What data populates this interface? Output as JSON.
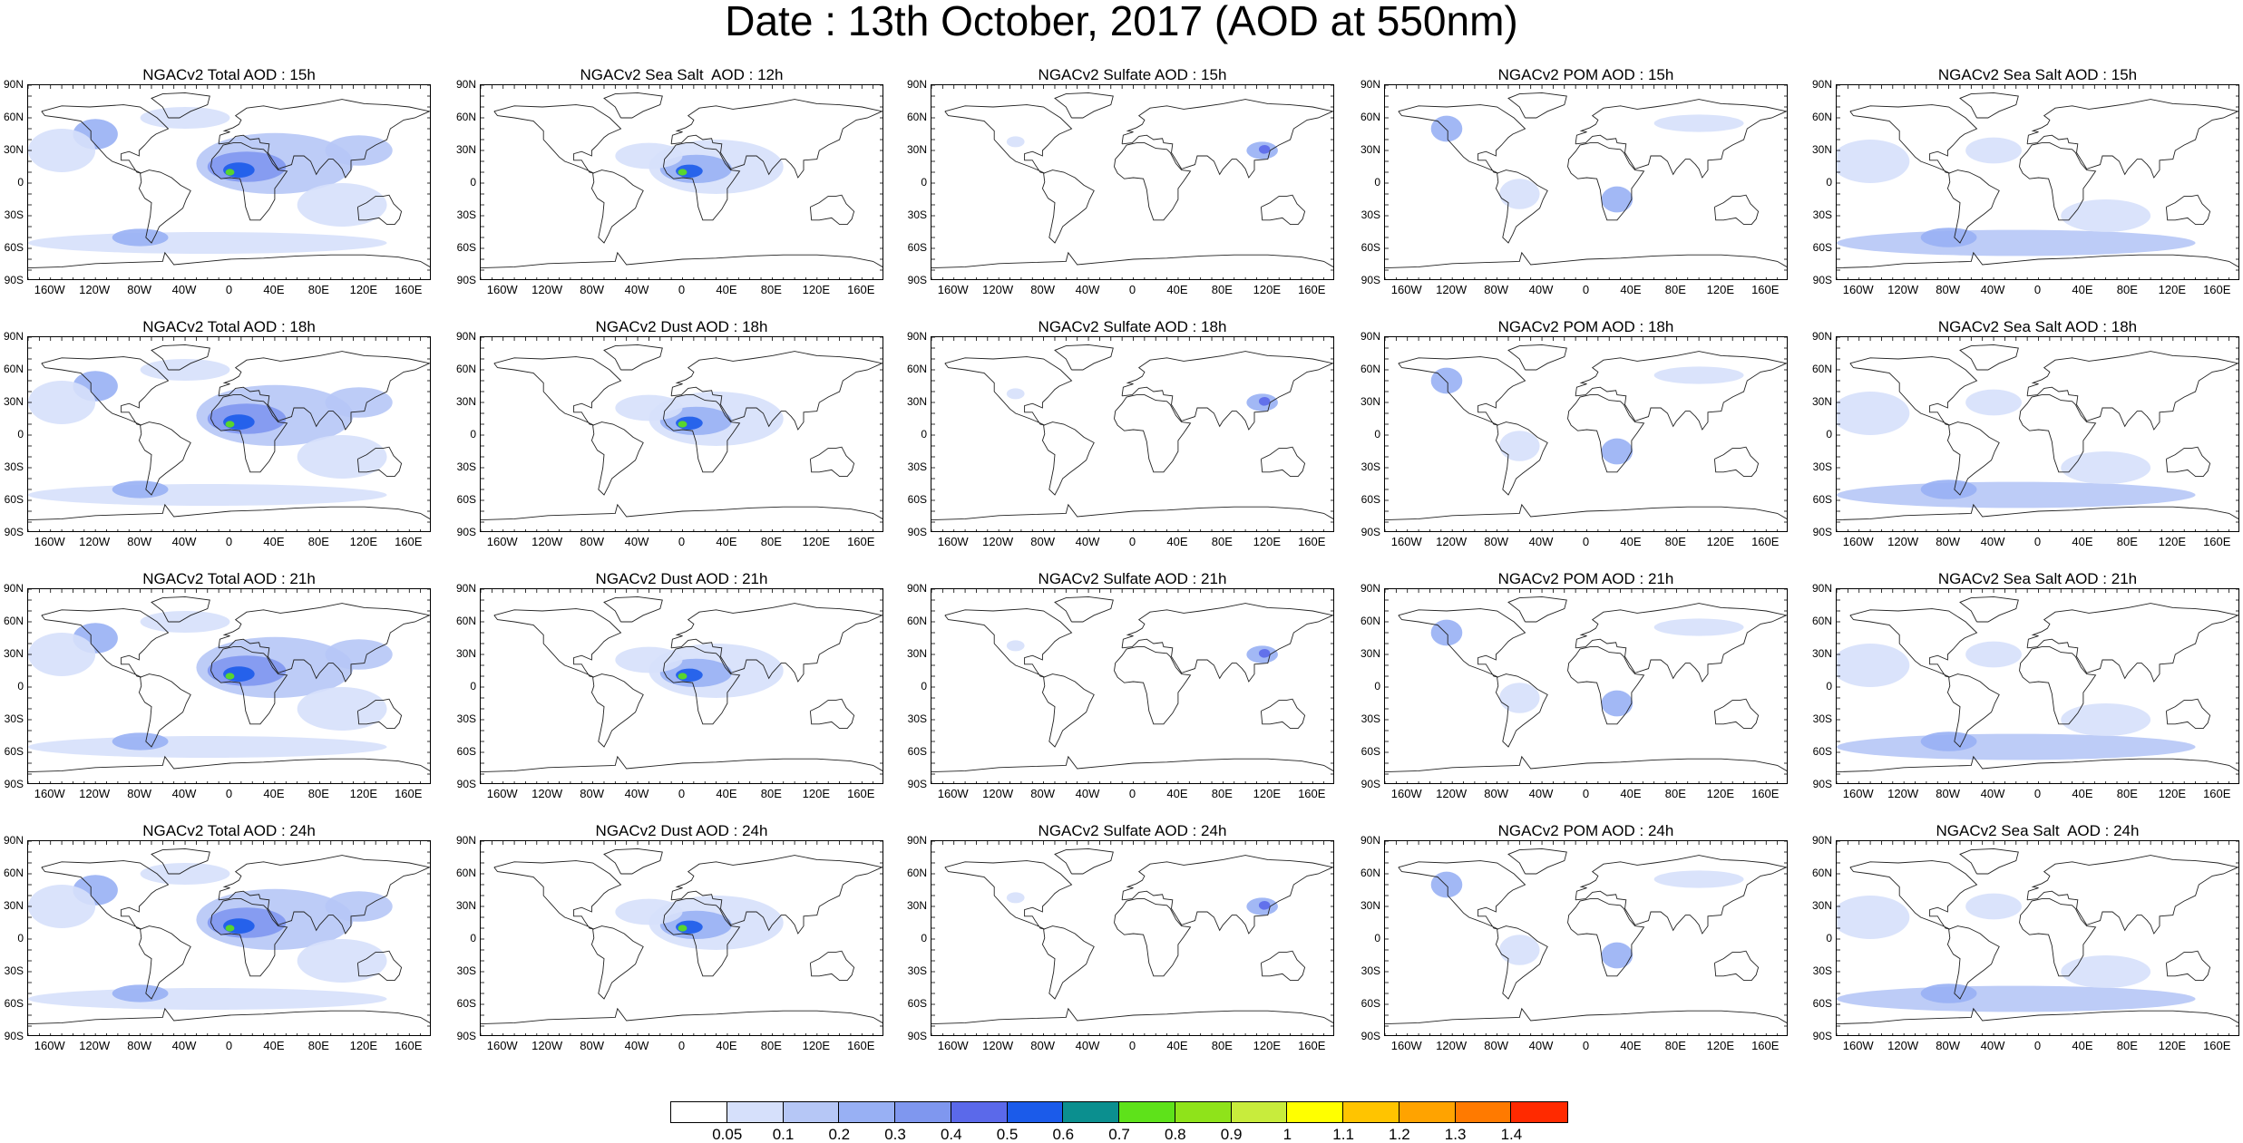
{
  "title": "Date : 13th October, 2017 (AOD at 550nm)",
  "lat_ticks": [
    "90N",
    "60N",
    "30N",
    "0",
    "30S",
    "60S",
    "90S"
  ],
  "lon_ticks": [
    "160W",
    "120W",
    "80W",
    "40W",
    "0",
    "40E",
    "80E",
    "120E",
    "160E"
  ],
  "panels": [
    [
      "NGACv2 Total AOD : 15h",
      "NGACv2 Sea Salt  AOD : 12h",
      "NGACv2 Sulfate AOD : 15h",
      "NGACv2 POM AOD : 15h",
      "NGACv2 Sea Salt AOD : 15h"
    ],
    [
      "NGACv2 Total AOD : 18h",
      "NGACv2 Dust AOD : 18h",
      "NGACv2 Sulfate AOD : 18h",
      "NGACv2 POM AOD : 18h",
      "NGACv2 Sea Salt AOD : 18h"
    ],
    [
      "NGACv2 Total AOD : 21h",
      "NGACv2 Dust AOD : 21h",
      "NGACv2 Sulfate AOD : 21h",
      "NGACv2 POM AOD : 21h",
      "NGACv2 Sea Salt AOD : 21h"
    ],
    [
      "NGACv2 Total AOD : 24h",
      "NGACv2 Dust AOD : 24h",
      "NGACv2 Sulfate AOD : 24h",
      "NGACv2 POM AOD : 24h",
      "NGACv2 Sea Salt  AOD : 24h"
    ]
  ],
  "colorbar": {
    "labels": [
      "0.05",
      "0.1",
      "0.2",
      "0.3",
      "0.4",
      "0.5",
      "0.6",
      "0.7",
      "0.8",
      "0.9",
      "1",
      "1.1",
      "1.2",
      "1.3",
      "1.4"
    ],
    "colors": [
      "#ffffff",
      "#d6e0fb",
      "#b6c7f6",
      "#98b0f4",
      "#7f97ef",
      "#5b69ea",
      "#1b5bea",
      "#0b8f8f",
      "#5ee21a",
      "#8fe31a",
      "#c8ec3c",
      "#ffff00",
      "#ffc400",
      "#ffa300",
      "#ff7a00",
      "#ff2a00"
    ]
  }
}
